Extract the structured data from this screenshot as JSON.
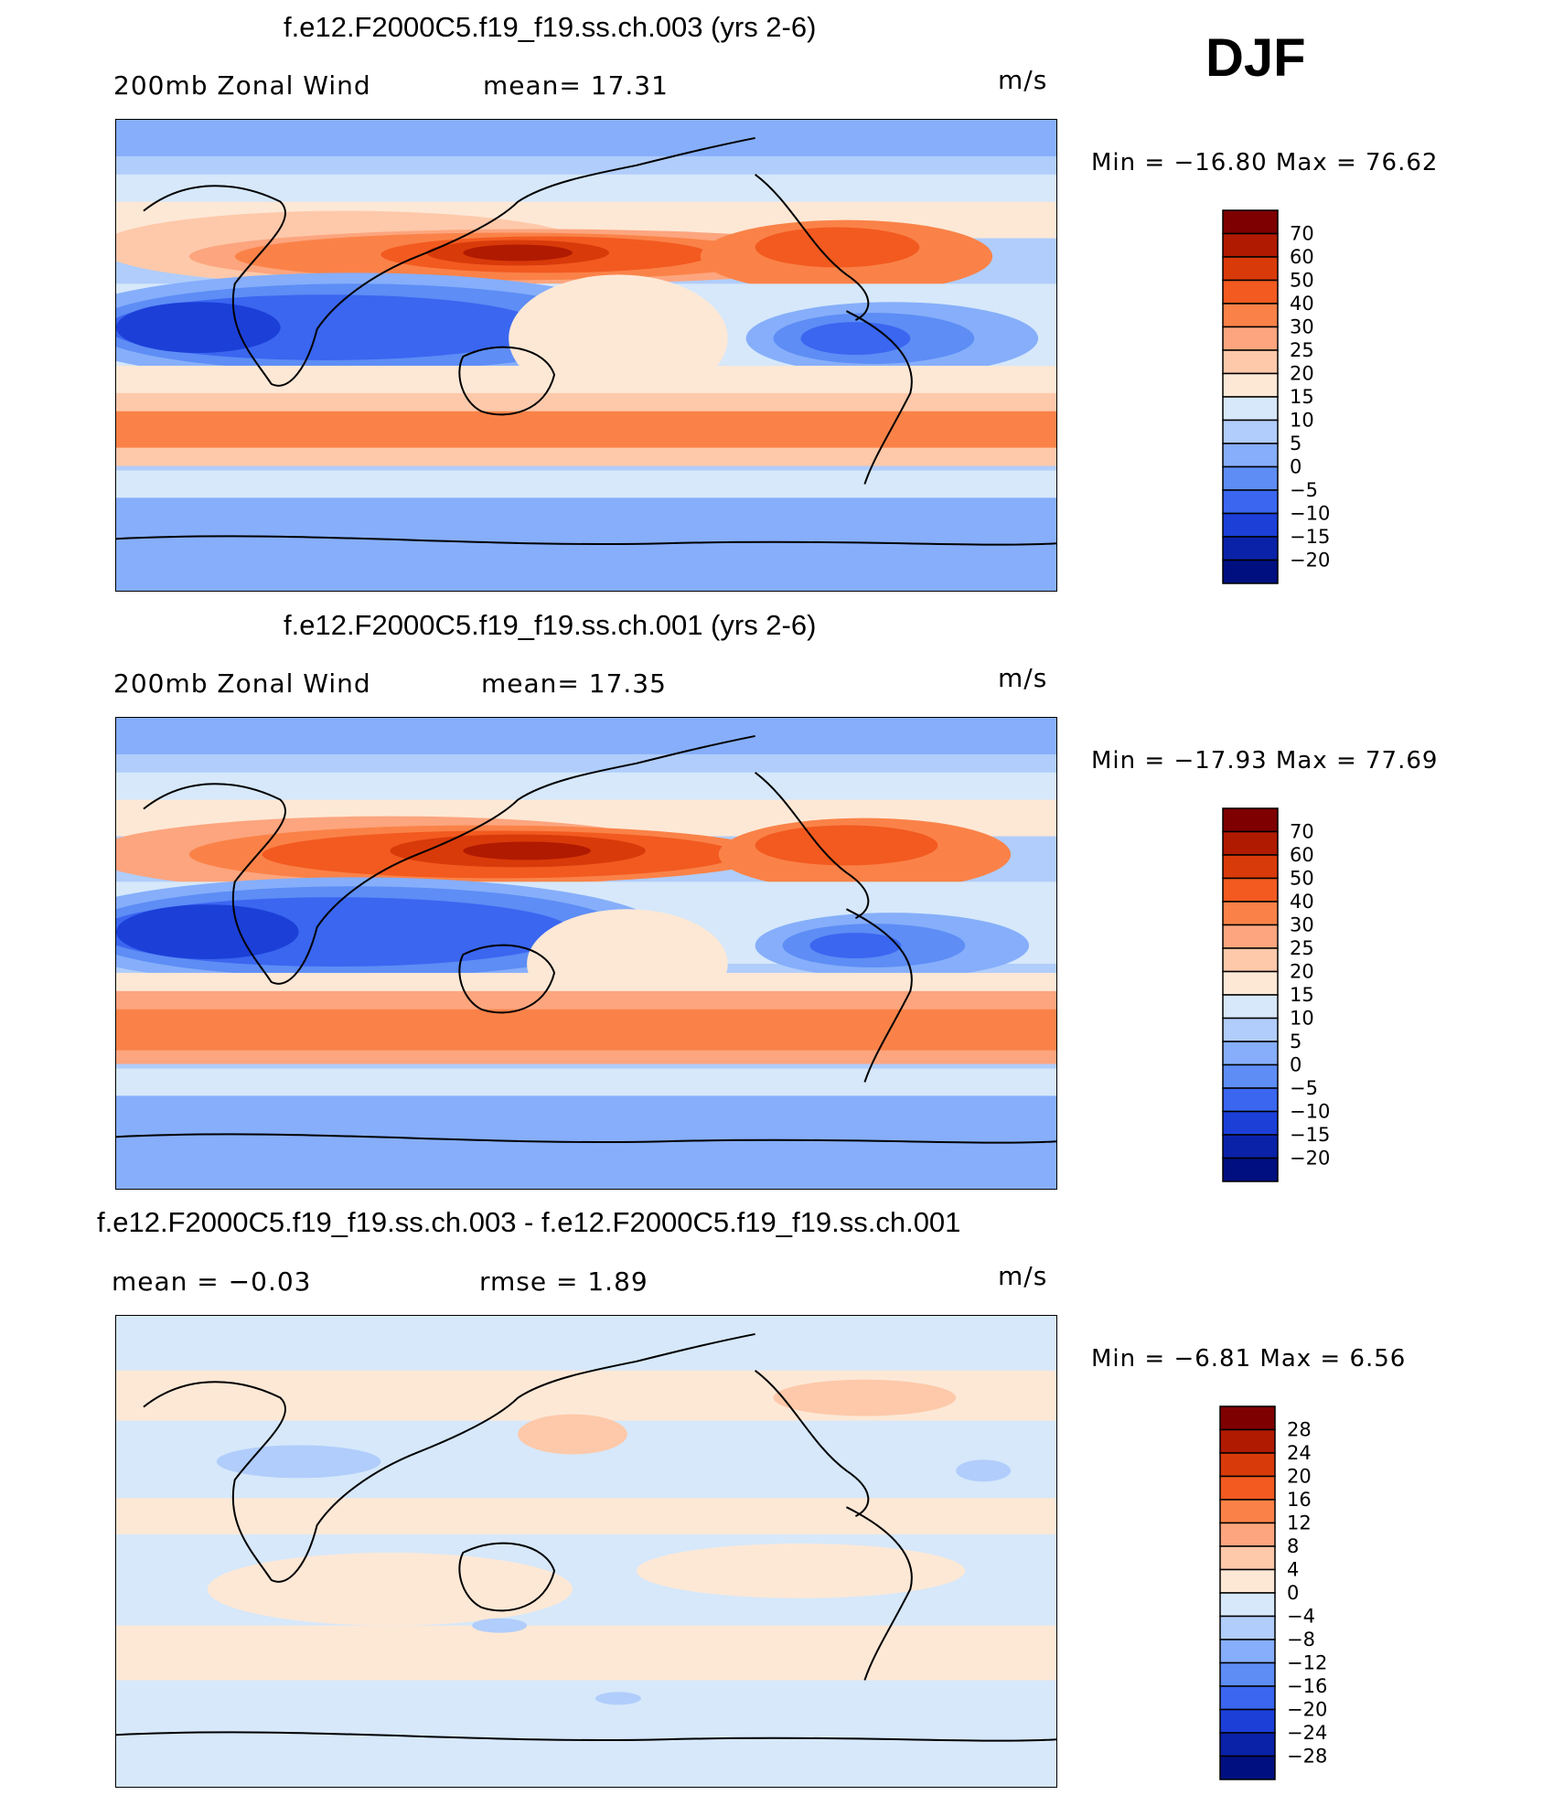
{
  "season": "DJF",
  "panels": [
    {
      "title": "f.e12.F2000C5.f19_f19.ss.ch.003 (yrs 2-6)",
      "left_label": "200mb Zonal Wind",
      "center_label": "mean=   17.31",
      "units": "m/s",
      "minmax": "Min = −16.80 Max =   76.62",
      "colorbar_labels": [
        "70",
        "60",
        "50",
        "40",
        "30",
        "25",
        "20",
        "15",
        "10",
        "5",
        "0",
        "−5",
        "−10",
        "−15",
        "−20"
      ]
    },
    {
      "title": "f.e12.F2000C5.f19_f19.ss.ch.001 (yrs 2-6)",
      "left_label": "200mb Zonal Wind",
      "center_label": "mean=   17.35",
      "units": "m/s",
      "minmax": "Min = −17.93 Max =   77.69",
      "colorbar_labels": [
        "70",
        "60",
        "50",
        "40",
        "30",
        "25",
        "20",
        "15",
        "10",
        "5",
        "0",
        "−5",
        "−10",
        "−15",
        "−20"
      ]
    },
    {
      "title": "f.e12.F2000C5.f19_f19.ss.ch.003 - f.e12.F2000C5.f19_f19.ss.ch.001",
      "left_label": "mean =   −0.03",
      "center_label": "rmse =    1.89",
      "units": "m/s",
      "minmax": "Min =   −6.81 Max =    6.56",
      "colorbar_labels": [
        "28",
        "24",
        "20",
        "16",
        "12",
        "8",
        "4",
        "0",
        "−4",
        "−8",
        "−12",
        "−16",
        "−20",
        "−24",
        "−28"
      ]
    }
  ],
  "colors": {
    "main_scale": [
      "#7f0000",
      "#b01a00",
      "#d93a0a",
      "#f25a20",
      "#fa8248",
      "#fca57e",
      "#fdc9aa",
      "#fde8d6",
      "#d6e8fa",
      "#b0cdfb",
      "#86aefa",
      "#5d8df5",
      "#3a66f0",
      "#1c3fd8",
      "#0a22a8",
      "#000f80"
    ],
    "diff_scale": [
      "#7f0000",
      "#b01a00",
      "#d93a0a",
      "#f25a20",
      "#fa8248",
      "#fca57e",
      "#fdc9aa",
      "#fde8d6",
      "#d6e8fa",
      "#b0cdfb",
      "#86aefa",
      "#5d8df5",
      "#3a66f0",
      "#1c3fd8",
      "#0a22a8",
      "#000f80"
    ],
    "coast": "#000000"
  }
}
